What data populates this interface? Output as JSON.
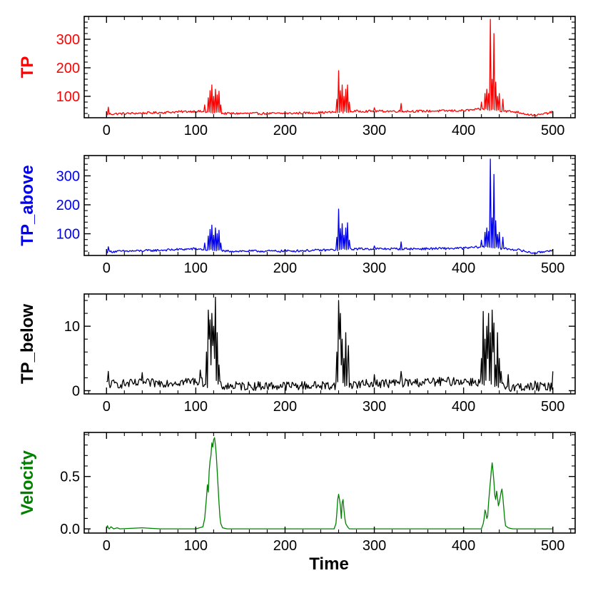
{
  "chart_data": [
    {
      "type": "line",
      "title": "",
      "ylabel": "TP",
      "xlabel": "",
      "color": "#ff0000",
      "tick_color": "#ff0000",
      "xlim": [
        -25,
        525
      ],
      "ylim": [
        25,
        380
      ],
      "xticks": [
        0,
        100,
        200,
        300,
        400,
        500
      ],
      "xtick_labels": [
        "0",
        "100",
        "200",
        "300",
        "400",
        "500"
      ],
      "yticks": [
        100,
        200,
        300
      ],
      "ytick_labels": [
        "100",
        "200",
        "300"
      ],
      "baseline": [
        [
          0,
          38
        ],
        [
          50,
          42
        ],
        [
          100,
          48
        ],
        [
          130,
          40
        ],
        [
          200,
          40
        ],
        [
          250,
          44
        ],
        [
          280,
          48
        ],
        [
          350,
          48
        ],
        [
          400,
          50
        ],
        [
          420,
          55
        ],
        [
          460,
          45
        ],
        [
          480,
          32
        ],
        [
          500,
          45
        ]
      ],
      "noise": 4,
      "spikes": [
        [
          2,
          62
        ],
        [
          110,
          70
        ],
        [
          114,
          95
        ],
        [
          116,
          120
        ],
        [
          118,
          140
        ],
        [
          120,
          100
        ],
        [
          122,
          125
        ],
        [
          124,
          105
        ],
        [
          126,
          118
        ],
        [
          128,
          70
        ],
        [
          258,
          90
        ],
        [
          260,
          190
        ],
        [
          262,
          120
        ],
        [
          264,
          140
        ],
        [
          266,
          100
        ],
        [
          268,
          125
        ],
        [
          270,
          140
        ],
        [
          272,
          80
        ],
        [
          300,
          60
        ],
        [
          330,
          75
        ],
        [
          420,
          80
        ],
        [
          424,
          110
        ],
        [
          426,
          125
        ],
        [
          428,
          110
        ],
        [
          430,
          370
        ],
        [
          432,
          160
        ],
        [
          434,
          320
        ],
        [
          436,
          150
        ],
        [
          438,
          100
        ],
        [
          440,
          110
        ],
        [
          444,
          90
        ]
      ]
    },
    {
      "type": "line",
      "title": "",
      "ylabel": "TP_above",
      "xlabel": "",
      "color": "#0000ee",
      "tick_color": "#0000ee",
      "xlim": [
        -25,
        525
      ],
      "ylim": [
        25,
        370
      ],
      "xticks": [
        0,
        100,
        200,
        300,
        400,
        500
      ],
      "xtick_labels": [
        "0",
        "100",
        "200",
        "300",
        "400",
        "500"
      ],
      "yticks": [
        100,
        200,
        300
      ],
      "ytick_labels": [
        "100",
        "200",
        "300"
      ],
      "baseline": [
        [
          0,
          38
        ],
        [
          50,
          42
        ],
        [
          100,
          48
        ],
        [
          130,
          40
        ],
        [
          200,
          40
        ],
        [
          250,
          44
        ],
        [
          280,
          48
        ],
        [
          350,
          48
        ],
        [
          400,
          50
        ],
        [
          420,
          55
        ],
        [
          460,
          45
        ],
        [
          480,
          32
        ],
        [
          500,
          45
        ]
      ],
      "noise": 4,
      "spikes": [
        [
          2,
          55
        ],
        [
          110,
          68
        ],
        [
          114,
          92
        ],
        [
          116,
          115
        ],
        [
          118,
          130
        ],
        [
          120,
          95
        ],
        [
          122,
          120
        ],
        [
          124,
          100
        ],
        [
          126,
          112
        ],
        [
          128,
          68
        ],
        [
          258,
          88
        ],
        [
          260,
          185
        ],
        [
          262,
          118
        ],
        [
          264,
          135
        ],
        [
          266,
          95
        ],
        [
          268,
          120
        ],
        [
          270,
          138
        ],
        [
          272,
          78
        ],
        [
          300,
          58
        ],
        [
          330,
          72
        ],
        [
          420,
          78
        ],
        [
          424,
          105
        ],
        [
          426,
          120
        ],
        [
          428,
          108
        ],
        [
          430,
          358
        ],
        [
          432,
          155
        ],
        [
          434,
          305
        ],
        [
          436,
          145
        ],
        [
          438,
          98
        ],
        [
          440,
          105
        ],
        [
          444,
          88
        ]
      ]
    },
    {
      "type": "line",
      "title": "",
      "ylabel": "TP_below",
      "xlabel": "",
      "color": "#000000",
      "tick_color": "#000000",
      "xlim": [
        -25,
        525
      ],
      "ylim": [
        -0.5,
        15
      ],
      "xticks": [
        0,
        100,
        200,
        300,
        400,
        500
      ],
      "xtick_labels": [
        "0",
        "100",
        "200",
        "300",
        "400",
        "500"
      ],
      "yticks": [
        0,
        10
      ],
      "ytick_labels": [
        "0",
        "10"
      ],
      "baseline": [
        [
          0,
          1.0
        ],
        [
          60,
          1.2
        ],
        [
          100,
          1.5
        ],
        [
          112,
          1.2
        ],
        [
          130,
          0.7
        ],
        [
          250,
          0.8
        ],
        [
          280,
          1.0
        ],
        [
          400,
          1.5
        ],
        [
          420,
          1.3
        ],
        [
          450,
          0.6
        ],
        [
          500,
          0.6
        ]
      ],
      "noise": 0.7,
      "spikes": [
        [
          2,
          3.0
        ],
        [
          40,
          2.8
        ],
        [
          105,
          3.2
        ],
        [
          112,
          6
        ],
        [
          114,
          12.5
        ],
        [
          115,
          8
        ],
        [
          116,
          11
        ],
        [
          117,
          4
        ],
        [
          118,
          12
        ],
        [
          119,
          7
        ],
        [
          120,
          10
        ],
        [
          121,
          5
        ],
        [
          122,
          14.5
        ],
        [
          124,
          9
        ],
        [
          126,
          4
        ],
        [
          258,
          6
        ],
        [
          260,
          14
        ],
        [
          261,
          8
        ],
        [
          262,
          12
        ],
        [
          263,
          4
        ],
        [
          264,
          8
        ],
        [
          266,
          5
        ],
        [
          268,
          9
        ],
        [
          270,
          4
        ],
        [
          271,
          7
        ],
        [
          300,
          2.5
        ],
        [
          330,
          3.0
        ],
        [
          420,
          5
        ],
        [
          422,
          12.3
        ],
        [
          424,
          8
        ],
        [
          426,
          10
        ],
        [
          427,
          5
        ],
        [
          428,
          12
        ],
        [
          430,
          9
        ],
        [
          432,
          12.5
        ],
        [
          433,
          6
        ],
        [
          434,
          10.5
        ],
        [
          436,
          4
        ],
        [
          438,
          9
        ],
        [
          440,
          5
        ],
        [
          442,
          3
        ],
        [
          450,
          2.5
        ],
        [
          480,
          1.5
        ],
        [
          500,
          3.0
        ]
      ]
    },
    {
      "type": "line",
      "title": "",
      "ylabel": "Velocity",
      "xlabel": "Time",
      "color": "#008000",
      "tick_color": "#000000",
      "xlim": [
        -25,
        525
      ],
      "ylim": [
        -0.04,
        0.92
      ],
      "xticks": [
        0,
        100,
        200,
        300,
        400,
        500
      ],
      "xtick_labels": [
        "0",
        "100",
        "200",
        "300",
        "400",
        "500"
      ],
      "yticks": [
        0.0,
        0.5
      ],
      "ytick_labels": [
        "0.0",
        "0.5"
      ],
      "smooth_points": [
        [
          0,
          0.0
        ],
        [
          1,
          0.03
        ],
        [
          2,
          0.01
        ],
        [
          3,
          0.0
        ],
        [
          5,
          0.02
        ],
        [
          8,
          0.0
        ],
        [
          12,
          0.01
        ],
        [
          15,
          0.0
        ],
        [
          40,
          0.01
        ],
        [
          60,
          0.0
        ],
        [
          100,
          0.0
        ],
        [
          108,
          0.02
        ],
        [
          110,
          0.1
        ],
        [
          112,
          0.3
        ],
        [
          113,
          0.42
        ],
        [
          114,
          0.35
        ],
        [
          115,
          0.55
        ],
        [
          116,
          0.65
        ],
        [
          117,
          0.7
        ],
        [
          118,
          0.82
        ],
        [
          119,
          0.78
        ],
        [
          120,
          0.85
        ],
        [
          121,
          0.87
        ],
        [
          122,
          0.8
        ],
        [
          123,
          0.7
        ],
        [
          124,
          0.55
        ],
        [
          125,
          0.4
        ],
        [
          126,
          0.25
        ],
        [
          127,
          0.12
        ],
        [
          128,
          0.05
        ],
        [
          130,
          0.01
        ],
        [
          135,
          0.0
        ],
        [
          255,
          0.0
        ],
        [
          257,
          0.05
        ],
        [
          258,
          0.15
        ],
        [
          259,
          0.28
        ],
        [
          260,
          0.33
        ],
        [
          261,
          0.28
        ],
        [
          262,
          0.22
        ],
        [
          263,
          0.1
        ],
        [
          264,
          0.25
        ],
        [
          265,
          0.28
        ],
        [
          266,
          0.18
        ],
        [
          267,
          0.1
        ],
        [
          268,
          0.05
        ],
        [
          270,
          0.02
        ],
        [
          272,
          0.0
        ],
        [
          420,
          0.0
        ],
        [
          422,
          0.05
        ],
        [
          423,
          0.1
        ],
        [
          424,
          0.18
        ],
        [
          425,
          0.15
        ],
        [
          426,
          0.1
        ],
        [
          427,
          0.12
        ],
        [
          428,
          0.25
        ],
        [
          429,
          0.35
        ],
        [
          430,
          0.45
        ],
        [
          431,
          0.55
        ],
        [
          432,
          0.63
        ],
        [
          433,
          0.55
        ],
        [
          434,
          0.45
        ],
        [
          435,
          0.32
        ],
        [
          436,
          0.28
        ],
        [
          437,
          0.36
        ],
        [
          438,
          0.3
        ],
        [
          439,
          0.22
        ],
        [
          440,
          0.25
        ],
        [
          441,
          0.3
        ],
        [
          442,
          0.35
        ],
        [
          443,
          0.38
        ],
        [
          444,
          0.3
        ],
        [
          445,
          0.2
        ],
        [
          446,
          0.1
        ],
        [
          447,
          0.03
        ],
        [
          450,
          0.01
        ],
        [
          455,
          0.0
        ],
        [
          500,
          0.0
        ]
      ]
    }
  ]
}
